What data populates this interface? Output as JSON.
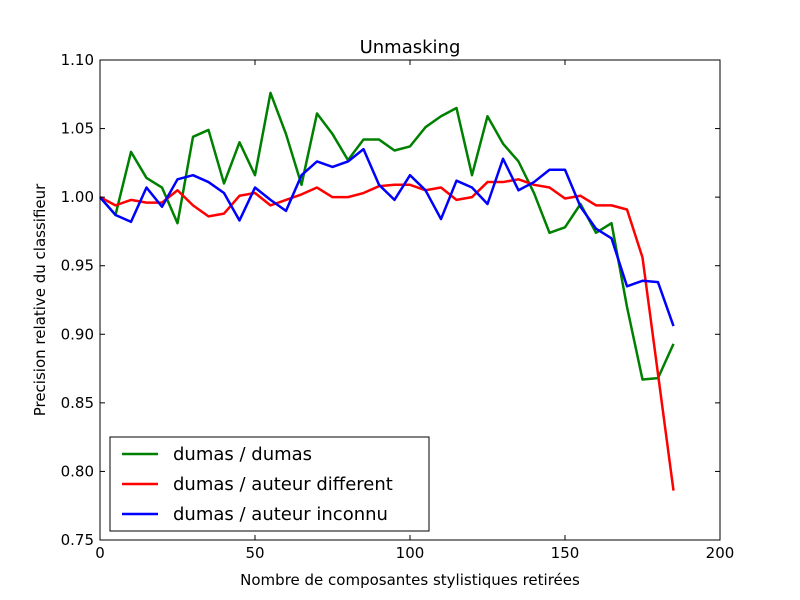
{
  "chart_data": {
    "type": "line",
    "title": "Unmasking",
    "xlabel": "Nombre de composantes stylistiques retirées",
    "ylabel": "Precision relative du classifieur",
    "xlim": [
      0,
      200
    ],
    "ylim": [
      0.75,
      1.1
    ],
    "xticks": [
      0,
      50,
      100,
      150,
      200
    ],
    "yticks": [
      0.75,
      0.8,
      0.85,
      0.9,
      0.95,
      1.0,
      1.05,
      1.1
    ],
    "xtick_labels": [
      "0",
      "50",
      "100",
      "150",
      "200"
    ],
    "ytick_labels": [
      "0.75",
      "0.80",
      "0.85",
      "0.90",
      "0.95",
      "1.00",
      "1.05",
      "1.10"
    ],
    "grid": false,
    "legend_position": "bottom-left",
    "x": [
      0,
      5,
      10,
      15,
      20,
      25,
      30,
      35,
      40,
      45,
      50,
      55,
      60,
      65,
      70,
      75,
      80,
      85,
      90,
      95,
      100,
      105,
      110,
      115,
      120,
      125,
      130,
      135,
      140,
      145,
      150,
      155,
      160,
      165,
      170,
      175,
      180,
      185
    ],
    "series": [
      {
        "name": "dumas / dumas",
        "color": "#008000",
        "values": [
          1.0,
          0.987,
          1.033,
          1.014,
          1.007,
          0.981,
          1.044,
          1.049,
          1.01,
          1.04,
          1.016,
          1.076,
          1.046,
          1.009,
          1.061,
          1.046,
          1.027,
          1.042,
          1.042,
          1.034,
          1.037,
          1.051,
          1.059,
          1.065,
          1.016,
          1.059,
          1.039,
          1.026,
          1.003,
          0.974,
          0.978,
          0.995,
          0.974,
          0.981,
          0.92,
          0.867,
          0.868,
          0.893
        ]
      },
      {
        "name": "dumas / auteur different",
        "color": "#ff0000",
        "values": [
          1.0,
          0.994,
          0.998,
          0.996,
          0.996,
          1.005,
          0.994,
          0.986,
          0.988,
          1.001,
          1.003,
          0.994,
          0.998,
          1.002,
          1.007,
          1.0,
          1.0,
          1.003,
          1.008,
          1.009,
          1.009,
          1.005,
          1.007,
          0.998,
          1.0,
          1.011,
          1.011,
          1.013,
          1.009,
          1.007,
          0.999,
          1.001,
          0.994,
          0.994,
          0.991,
          0.956,
          0.871,
          0.786
        ]
      },
      {
        "name": "dumas / auteur inconnu",
        "color": "#0000ff",
        "values": [
          1.0,
          0.987,
          0.982,
          1.007,
          0.993,
          1.013,
          1.016,
          1.011,
          1.003,
          0.983,
          1.007,
          0.998,
          0.99,
          1.016,
          1.026,
          1.022,
          1.026,
          1.035,
          1.009,
          0.998,
          1.016,
          1.005,
          0.984,
          1.012,
          1.007,
          0.995,
          1.028,
          1.005,
          1.011,
          1.02,
          1.02,
          0.993,
          0.977,
          0.97,
          0.935,
          0.939,
          0.938,
          0.906
        ]
      }
    ]
  }
}
